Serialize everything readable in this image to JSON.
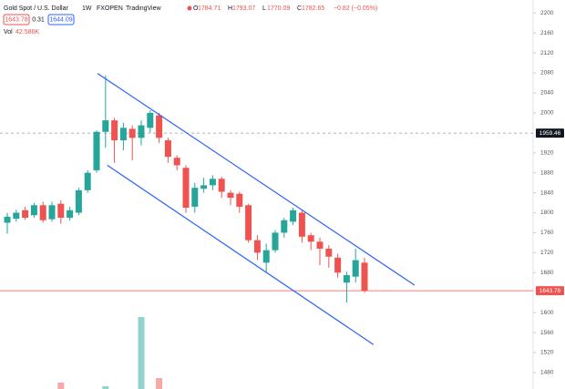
{
  "header": {
    "symbol": "Gold Spot / U.S. Dollar",
    "interval": "1W",
    "exchange": "FXOPEN",
    "source": "TradingView",
    "ohlc": [
      {
        "label": "O",
        "value": "1784.71"
      },
      {
        "label": "H",
        "value": "1793.07"
      },
      {
        "label": "L",
        "value": "1770.09"
      },
      {
        "label": "C",
        "value": "1782.65"
      }
    ],
    "change": "−0.82 (−0.05%)",
    "pills": [
      "1643.78",
      "0.31",
      "1644.09"
    ],
    "volume_label": "Vol",
    "volume_value": "42.586K"
  },
  "chart_data": {
    "type": "candlestick",
    "open": [
      1780,
      1788,
      1805,
      1795,
      1815,
      1787,
      1818,
      1790,
      1800,
      1845,
      1885,
      1962,
      1985,
      1945,
      1968,
      1950,
      1970,
      1995,
      1945,
      1910,
      1890,
      1812,
      1848,
      1855,
      1868,
      1840,
      1838,
      1815,
      1745,
      1700,
      1725,
      1760,
      1782,
      1800,
      1755,
      1742,
      1728,
      1710,
      1660,
      1672,
      1700
    ],
    "high": [
      1800,
      1806,
      1812,
      1820,
      1822,
      1822,
      1825,
      1812,
      1850,
      1885,
      1965,
      2075,
      1990,
      1980,
      1975,
      1985,
      2005,
      2000,
      1950,
      1915,
      1895,
      1860,
      1870,
      1875,
      1872,
      1845,
      1842,
      1818,
      1755,
      1738,
      1765,
      1790,
      1810,
      1805,
      1760,
      1750,
      1735,
      1718,
      1682,
      1728,
      1710
    ],
    "low": [
      1758,
      1782,
      1786,
      1790,
      1780,
      1782,
      1778,
      1784,
      1795,
      1840,
      1880,
      1930,
      1900,
      1925,
      1905,
      1935,
      1960,
      1940,
      1900,
      1885,
      1800,
      1800,
      1840,
      1845,
      1830,
      1815,
      1800,
      1740,
      1705,
      1680,
      1720,
      1750,
      1775,
      1740,
      1725,
      1695,
      1690,
      1670,
      1620,
      1660,
      1640
    ],
    "close": [
      1792,
      1800,
      1790,
      1815,
      1785,
      1815,
      1790,
      1805,
      1845,
      1880,
      1962,
      1985,
      1945,
      1970,
      1950,
      1975,
      2000,
      1950,
      1912,
      1895,
      1810,
      1850,
      1855,
      1868,
      1842,
      1830,
      1812,
      1745,
      1720,
      1725,
      1760,
      1785,
      1805,
      1752,
      1742,
      1728,
      1712,
      1680,
      1675,
      1705,
      1643.78
    ],
    "volume": [
      null,
      null,
      null,
      null,
      null,
      null,
      70,
      null,
      null,
      null,
      null,
      30,
      null,
      null,
      null,
      790,
      null,
      120,
      null,
      null,
      null,
      null,
      null,
      null,
      null,
      null,
      null,
      null,
      null,
      null,
      null,
      null,
      null,
      null,
      null,
      null,
      null,
      null,
      null,
      null,
      null
    ],
    "up_color": "#26a69a",
    "down_color": "#ef5350",
    "ylim": [
      1447,
      2226
    ],
    "yticks": [
      2200,
      2160,
      2120,
      2080,
      2040,
      2000,
      1920,
      1880,
      1840,
      1800,
      1760,
      1720,
      1680,
      1600,
      1560,
      1520,
      1480
    ],
    "trendlines": [
      {
        "x": [
          10.1,
          45.6
        ],
        "y": [
          2079,
          1655
        ],
        "color": "#2962ff"
      },
      {
        "x": [
          11.2,
          41
        ],
        "y": [
          1895,
          1536
        ],
        "color": "#2962ff"
      }
    ],
    "price_lines": [
      {
        "value": 1959.46,
        "label": "1959.46",
        "style": "dashed",
        "color": "#9598a1"
      },
      {
        "value": 1643.78,
        "label": "1643.78",
        "style": "solid",
        "color": "#ef5350"
      }
    ]
  }
}
